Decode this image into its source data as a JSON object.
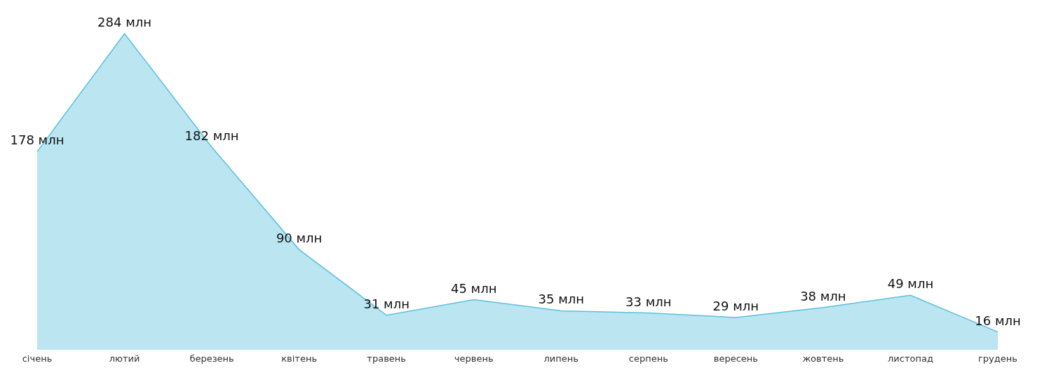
{
  "chart_data": {
    "type": "area",
    "categories": [
      "січень",
      "лютий",
      "березень",
      "квітень",
      "травень",
      "червень",
      "липень",
      "серпень",
      "вересень",
      "жовтень",
      "листопад",
      "грудень"
    ],
    "values": [
      178,
      284,
      182,
      90,
      31,
      45,
      35,
      33,
      29,
      38,
      49,
      16
    ],
    "value_labels": [
      "178 млн",
      "284 млн",
      "182 млн",
      "90 млн",
      "31 млн",
      "45 млн",
      "35 млн",
      "33 млн",
      "29 млн",
      "38 млн",
      "49 млн",
      "16 млн"
    ],
    "color": "#5bc0de",
    "grid": false,
    "legend": false
  }
}
